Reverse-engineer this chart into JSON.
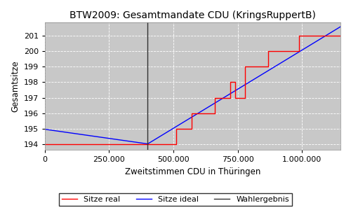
{
  "title": "BTW2009: Gesamtmandate CDU (KringsRuppertB)",
  "xlabel": "Zweitstimmen CDU in Thüringen",
  "ylabel": "Gesamtsitze",
  "bg_color": "#c8c8c8",
  "line_real_color": "red",
  "line_ideal_color": "blue",
  "line_wahlergebnis_color": "#333333",
  "wahlergebnis_x": 400000,
  "xlim": [
    0,
    1150000
  ],
  "ylim": [
    193.6,
    201.9
  ],
  "yticks": [
    194,
    195,
    196,
    197,
    198,
    199,
    200,
    201
  ],
  "xticks": [
    0,
    250000,
    500000,
    750000,
    1000000
  ],
  "legend_labels": [
    "Sitze real",
    "Sitze ideal",
    "Wahlergebnis"
  ],
  "ideal_points": [
    [
      0,
      194.95
    ],
    [
      400000,
      194.0
    ],
    [
      1150000,
      201.6
    ]
  ],
  "real_step_points": [
    [
      0,
      194
    ],
    [
      480000,
      194
    ],
    [
      510000,
      195
    ],
    [
      570000,
      196
    ],
    [
      640000,
      196
    ],
    [
      660000,
      197
    ],
    [
      700000,
      197
    ],
    [
      720000,
      198
    ],
    [
      740000,
      197
    ],
    [
      760000,
      197
    ],
    [
      780000,
      199
    ],
    [
      840000,
      199
    ],
    [
      870000,
      200
    ],
    [
      960000,
      200
    ],
    [
      990000,
      201
    ],
    [
      1150000,
      201
    ]
  ]
}
